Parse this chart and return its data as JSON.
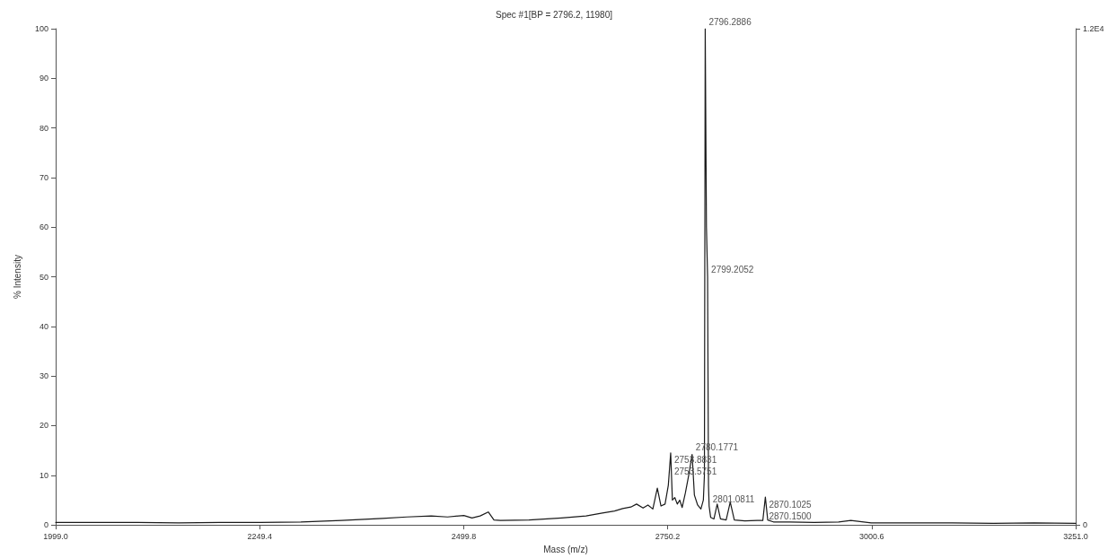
{
  "chart_data": {
    "type": "line",
    "title": "Spec #1[BP = 2796.2, 11980]",
    "xlabel": "Mass (m/z)",
    "ylabel": "% Intensity",
    "x": [
      1999,
      2050,
      2100,
      2150,
      2200,
      2250,
      2300,
      2350,
      2400,
      2430,
      2460,
      2480,
      2500,
      2510,
      2520,
      2530,
      2537,
      2545,
      2580,
      2620,
      2650,
      2670,
      2685,
      2695,
      2705,
      2712,
      2720,
      2726,
      2732,
      2737.5,
      2742,
      2747,
      2751,
      2753.9,
      2756,
      2759,
      2762,
      2765,
      2768,
      2772,
      2776,
      2780.2,
      2783,
      2787,
      2791,
      2794,
      2795.3,
      2796.29,
      2797.8,
      2799.21,
      2800.3,
      2801.08,
      2803,
      2807,
      2811,
      2815,
      2822,
      2827,
      2832,
      2845,
      2860,
      2867,
      2870.1,
      2873,
      2880,
      2900,
      2930,
      2960,
      2975,
      3000,
      3050,
      3100,
      3150,
      3200,
      3251
    ],
    "series": [
      {
        "color": "#1a1a1a",
        "values": [
          0.5,
          0.5,
          0.5,
          0.4,
          0.5,
          0.5,
          0.6,
          0.9,
          1.3,
          1.6,
          1.8,
          1.6,
          1.9,
          1.4,
          1.8,
          2.6,
          1.0,
          0.9,
          1.0,
          1.4,
          1.8,
          2.4,
          2.8,
          3.3,
          3.6,
          4.2,
          3.4,
          4.0,
          3.2,
          7.4,
          3.8,
          4.2,
          8.0,
          14.5,
          5.0,
          5.5,
          4.2,
          5.0,
          3.5,
          6.5,
          10.0,
          14.2,
          6.0,
          4.0,
          3.2,
          5.0,
          10.0,
          100,
          60,
          50,
          8.0,
          3.8,
          1.5,
          1.2,
          4.2,
          1.2,
          1.0,
          4.6,
          1.0,
          0.8,
          0.9,
          0.9,
          5.6,
          1.0,
          0.6,
          0.6,
          0.5,
          0.6,
          0.9,
          0.4,
          0.4,
          0.4,
          0.3,
          0.4,
          0.3
        ]
      }
    ],
    "annotations": [
      {
        "text": "2796.2886",
        "x": 2796.29,
        "y": 100
      },
      {
        "text": "2799.2052",
        "x": 2799.21,
        "y": 50
      },
      {
        "text": "2780.1771",
        "x": 2780.2,
        "y": 14.2
      },
      {
        "text": "2753.8831",
        "x": 2753.9,
        "y": 14.5
      },
      {
        "text": "2753.5751",
        "x": 2753.9,
        "y": 14.5
      },
      {
        "text": "2801.0811",
        "x": 2801.08,
        "y": 3.8
      },
      {
        "text": "2870.1025",
        "x": 2870.1,
        "y": 5.6
      },
      {
        "text": "2870.1500",
        "x": 2870.1,
        "y": 5.6
      }
    ],
    "xlim": [
      1999,
      3251
    ],
    "xticks": [
      {
        "value": 1999,
        "label": "1999.0"
      },
      2249.4,
      2499.8,
      2750.2,
      3000.6,
      {
        "value": 3251,
        "label": "3251.0"
      }
    ],
    "ylim": [
      0,
      100
    ],
    "yticks": [
      0,
      10,
      20,
      30,
      40,
      50,
      60,
      70,
      80,
      90,
      100
    ],
    "y2lim": [
      0,
      11980
    ],
    "y2ticks": [
      0,
      {
        "value": 11980,
        "label": "1.2E4"
      }
    ],
    "grid": false,
    "marker": "none",
    "line_style": "solid"
  }
}
